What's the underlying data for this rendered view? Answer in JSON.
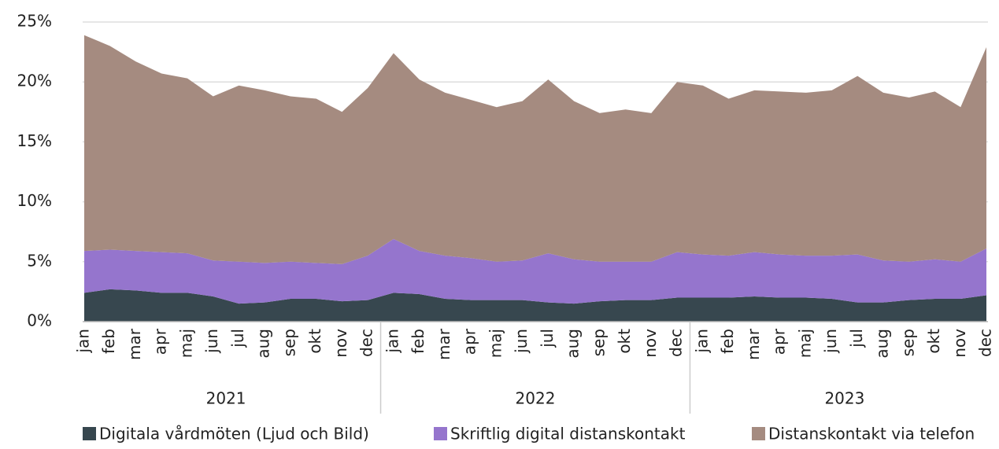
{
  "chart_data": {
    "type": "stacked_area",
    "categories": [
      "jan",
      "feb",
      "mar",
      "apr",
      "maj",
      "jun",
      "jul",
      "aug",
      "sep",
      "okt",
      "nov",
      "dec",
      "jan",
      "feb",
      "mar",
      "apr",
      "maj",
      "jun",
      "jul",
      "aug",
      "sep",
      "okt",
      "nov",
      "dec",
      "jan",
      "feb",
      "mar",
      "apr",
      "maj",
      "jun",
      "jul",
      "aug",
      "sep",
      "okt",
      "nov",
      "dec"
    ],
    "category_groups": [
      {
        "label": "2021",
        "size": 12
      },
      {
        "label": "2022",
        "size": 12
      },
      {
        "label": "2023",
        "size": 12
      }
    ],
    "series": [
      {
        "name": "Digitala vårdmöten (Ljud och Bild)",
        "color": "#37474f",
        "values": [
          2.4,
          2.7,
          2.6,
          2.4,
          2.4,
          2.1,
          1.5,
          1.6,
          1.9,
          1.9,
          1.7,
          1.8,
          2.4,
          2.3,
          1.9,
          1.8,
          1.8,
          1.8,
          1.6,
          1.5,
          1.7,
          1.8,
          1.8,
          2.0,
          2.0,
          2.0,
          2.1,
          2.0,
          2.0,
          1.9,
          1.6,
          1.6,
          1.8,
          1.9,
          1.9,
          2.2
        ]
      },
      {
        "name": "Skriftlig digital distanskontakt",
        "color": "#9575cd",
        "values": [
          3.5,
          3.3,
          3.3,
          3.4,
          3.3,
          3.0,
          3.5,
          3.3,
          3.1,
          3.0,
          3.1,
          3.7,
          4.5,
          3.6,
          3.6,
          3.5,
          3.2,
          3.3,
          4.1,
          3.7,
          3.3,
          3.2,
          3.2,
          3.8,
          3.6,
          3.5,
          3.7,
          3.6,
          3.5,
          3.6,
          4.0,
          3.5,
          3.2,
          3.3,
          3.1,
          3.9
        ]
      },
      {
        "name": "Distanskontakt via telefon",
        "color": "#a58b80",
        "values": [
          18.0,
          17.0,
          15.8,
          14.9,
          14.6,
          13.7,
          14.7,
          14.4,
          13.8,
          13.7,
          12.7,
          14.0,
          15.5,
          14.3,
          13.6,
          13.2,
          12.9,
          13.3,
          14.5,
          13.2,
          12.4,
          12.7,
          12.4,
          14.2,
          14.1,
          13.1,
          13.5,
          13.6,
          13.6,
          13.8,
          14.9,
          14.0,
          13.7,
          14.0,
          12.9,
          16.8
        ]
      }
    ],
    "ylim": [
      0,
      25
    ],
    "yticks": [
      {
        "value": 0,
        "label": "0%"
      },
      {
        "value": 5,
        "label": "5%"
      },
      {
        "value": 10,
        "label": "10%"
      },
      {
        "value": 15,
        "label": "15%"
      },
      {
        "value": 20,
        "label": "20%"
      },
      {
        "value": 25,
        "label": "25%"
      }
    ],
    "grid": true,
    "legend": "bottom"
  }
}
